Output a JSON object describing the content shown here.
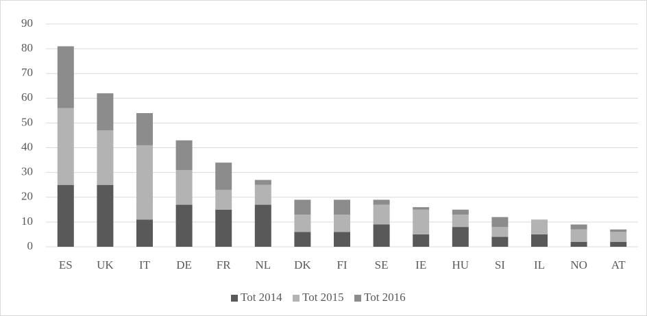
{
  "chart_data": {
    "type": "stacked_bar",
    "categories": [
      "ES",
      "UK",
      "IT",
      "DE",
      "FR",
      "NL",
      "DK",
      "FI",
      "SE",
      "IE",
      "HU",
      "SI",
      "IL",
      "NO",
      "AT"
    ],
    "series": [
      {
        "name": "Tot 2014",
        "color": "#595959",
        "values": [
          25,
          25,
          11,
          17,
          15,
          17,
          6,
          6,
          9,
          5,
          8,
          4,
          5,
          2,
          2
        ]
      },
      {
        "name": "Tot 2015",
        "color": "#b3b3b3",
        "values": [
          31,
          22,
          30,
          14,
          8,
          8,
          7,
          7,
          8,
          10,
          5,
          4,
          6,
          5,
          4
        ]
      },
      {
        "name": "Tot 2016",
        "color": "#8c8c8c",
        "values": [
          25,
          15,
          13,
          12,
          11,
          2,
          6,
          6,
          2,
          1,
          2,
          4,
          0,
          2,
          1
        ]
      }
    ],
    "ylim": [
      0,
      90
    ],
    "yticks": [
      0,
      10,
      20,
      30,
      40,
      50,
      60,
      70,
      80,
      90
    ],
    "grid": true,
    "legend": "bottom"
  }
}
